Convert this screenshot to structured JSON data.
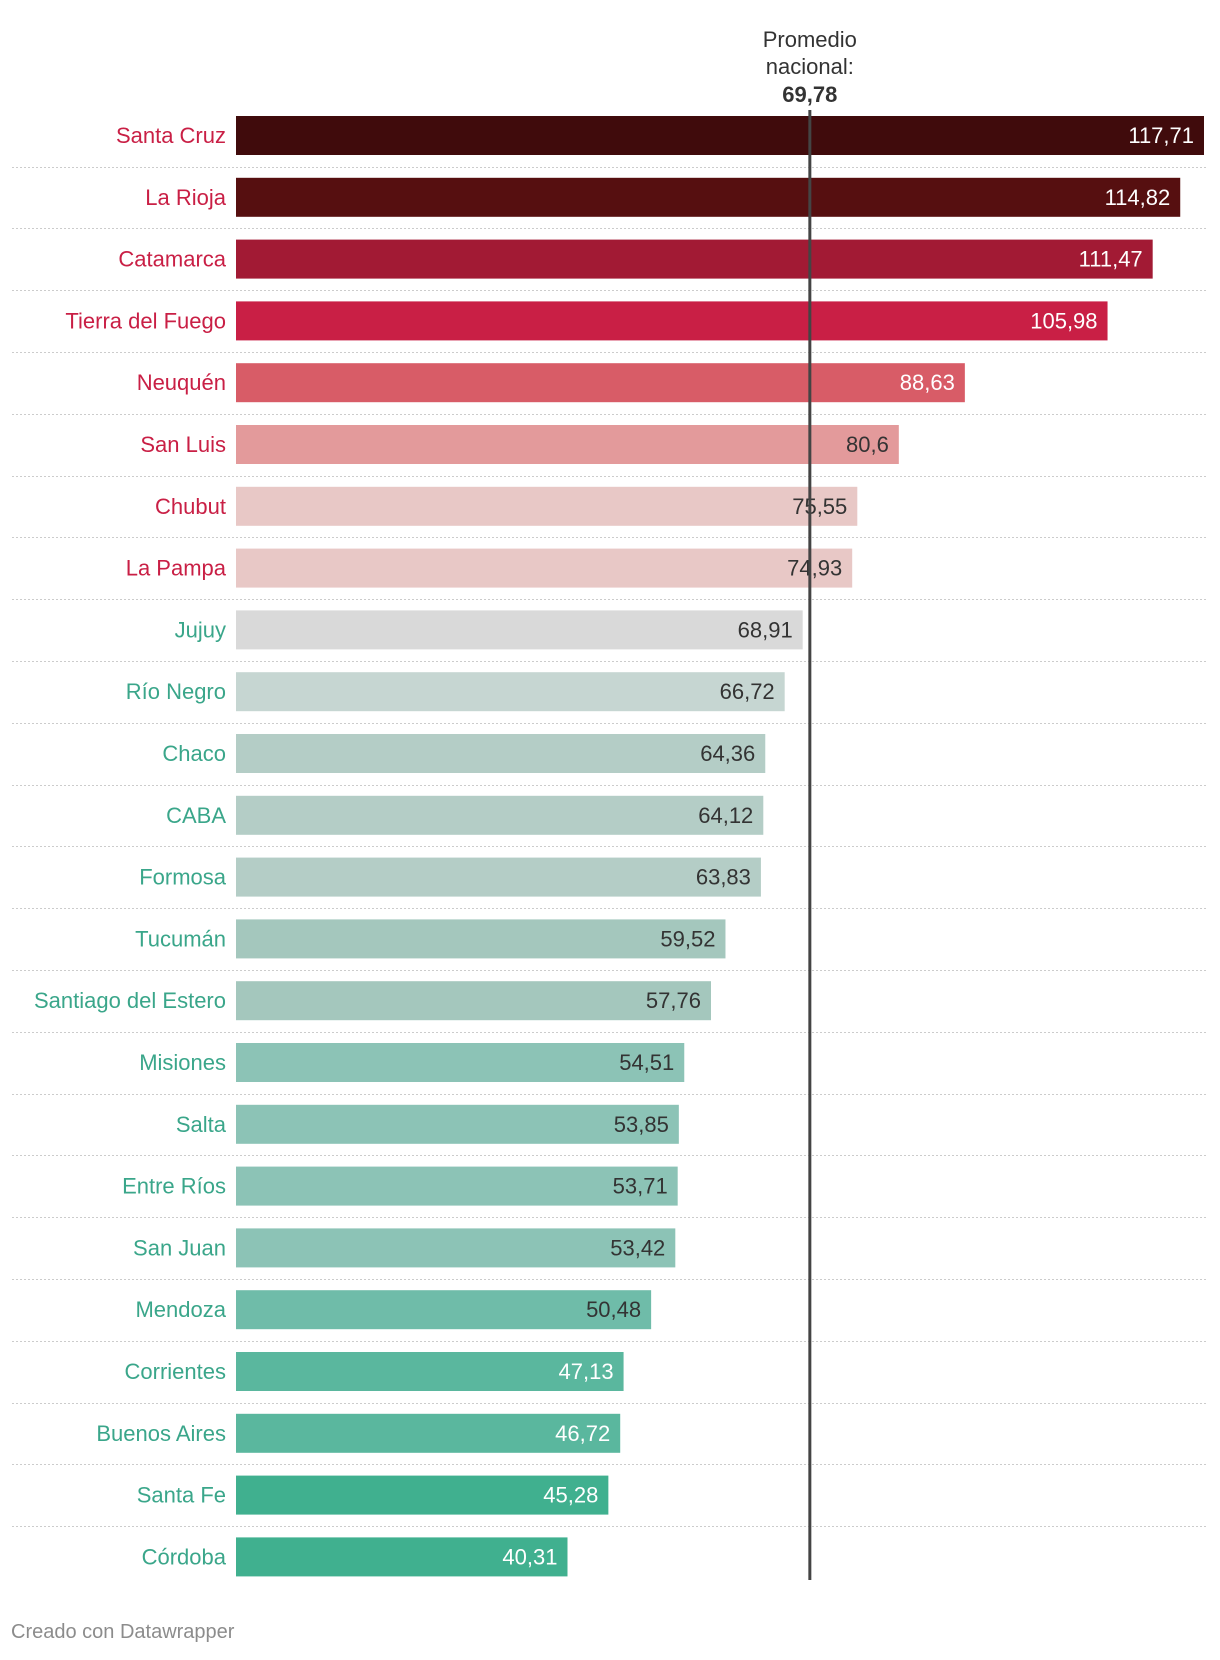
{
  "chart_data": {
    "type": "bar",
    "orientation": "horizontal",
    "title": "",
    "xlabel": "",
    "ylabel": "",
    "xlim": [
      0,
      117.71
    ],
    "grid": false,
    "reference_line": {
      "label_line1": "Promedio",
      "label_line2": "nacional:",
      "value_label": "69,78",
      "value": 69.78
    },
    "categories": [
      "Santa Cruz",
      "La Rioja",
      "Catamarca",
      "Tierra del Fuego",
      "Neuquén",
      "San Luis",
      "Chubut",
      "La Pampa",
      "Jujuy",
      "Río Negro",
      "Chaco",
      "CABA",
      "Formosa",
      "Tucumán",
      "Santiago del Estero",
      "Misiones",
      "Salta",
      "Entre Ríos",
      "San Juan",
      "Mendoza",
      "Corrientes",
      "Buenos Aires",
      "Santa Fe",
      "Córdoba"
    ],
    "values": [
      117.71,
      114.82,
      111.47,
      105.98,
      88.63,
      80.6,
      75.55,
      74.93,
      68.91,
      66.72,
      64.36,
      64.12,
      63.83,
      59.52,
      57.76,
      54.51,
      53.85,
      53.71,
      53.42,
      50.48,
      47.13,
      46.72,
      45.28,
      40.31
    ],
    "value_labels": [
      "117,71",
      "114,82",
      "111,47",
      "105,98",
      "88,63",
      "80,6",
      "75,55",
      "74,93",
      "68,91",
      "66,72",
      "64,36",
      "64,12",
      "63,83",
      "59,52",
      "57,76",
      "54,51",
      "53,85",
      "53,71",
      "53,42",
      "50,48",
      "47,13",
      "46,72",
      "45,28",
      "40,31"
    ],
    "bar_colors": [
      "#400b0c",
      "#560f10",
      "#a21a34",
      "#c91f45",
      "#d85c67",
      "#e39a9b",
      "#e8c8c6",
      "#e8c8c6",
      "#d9d9d9",
      "#c6d6d2",
      "#b4cdc6",
      "#b4cdc6",
      "#b4cdc6",
      "#a4c7bd",
      "#a4c7bd",
      "#8cc3b6",
      "#8cc3b6",
      "#8cc3b6",
      "#8cc3b6",
      "#6fbca9",
      "#5ab79e",
      "#5ab79e",
      "#40b08f",
      "#40b08f"
    ],
    "value_label_colors": [
      "#ffffff",
      "#ffffff",
      "#ffffff",
      "#ffffff",
      "#ffffff",
      "#333333",
      "#333333",
      "#333333",
      "#333333",
      "#333333",
      "#333333",
      "#333333",
      "#333333",
      "#333333",
      "#333333",
      "#333333",
      "#333333",
      "#333333",
      "#333333",
      "#333333",
      "#ffffff",
      "#ffffff",
      "#ffffff",
      "#ffffff"
    ],
    "category_label_colors": [
      "#c91f45",
      "#c91f45",
      "#c91f45",
      "#c91f45",
      "#c91f45",
      "#c91f45",
      "#c91f45",
      "#c91f45",
      "#3aa68a",
      "#3aa68a",
      "#3aa68a",
      "#3aa68a",
      "#3aa68a",
      "#3aa68a",
      "#3aa68a",
      "#3aa68a",
      "#3aa68a",
      "#3aa68a",
      "#3aa68a",
      "#3aa68a",
      "#3aa68a",
      "#3aa68a",
      "#3aa68a",
      "#3aa68a"
    ]
  },
  "footer": {
    "credit": "Creado con Datawrapper"
  },
  "colors": {
    "reference_line": "#444444",
    "separator": "#cccccc"
  }
}
